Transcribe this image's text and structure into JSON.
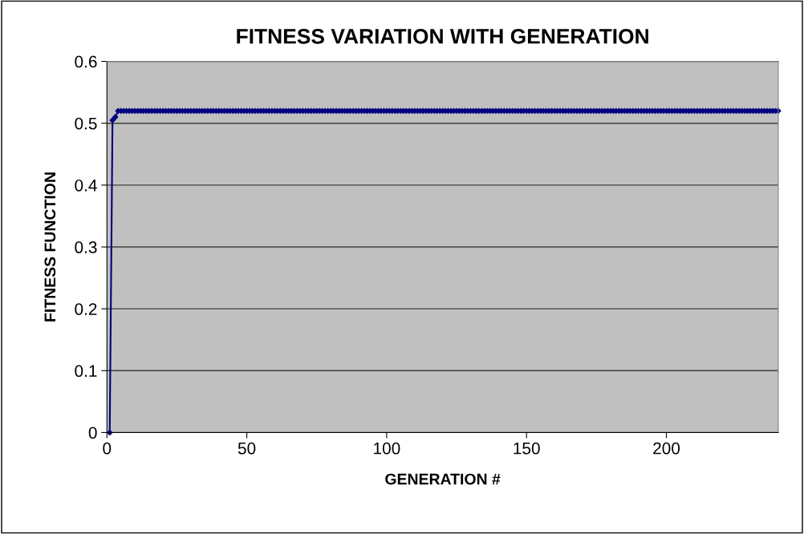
{
  "chart_data": {
    "type": "line",
    "title": "FITNESS VARIATION WITH GENERATION",
    "xlabel": "GENERATION #",
    "ylabel": "FITNESS FUNCTION",
    "x": [
      1,
      2,
      3,
      4,
      5,
      6,
      7,
      8,
      9,
      10,
      11,
      12,
      13,
      14,
      15,
      16,
      17,
      18,
      19,
      20,
      21,
      22,
      23,
      24,
      25,
      26,
      27,
      28,
      29,
      30,
      31,
      32,
      33,
      34,
      35,
      36,
      37,
      38,
      39,
      40,
      41,
      42,
      43,
      44,
      45,
      46,
      47,
      48,
      49,
      50,
      51,
      52,
      53,
      54,
      55,
      56,
      57,
      58,
      59,
      60,
      61,
      62,
      63,
      64,
      65,
      66,
      67,
      68,
      69,
      70,
      71,
      72,
      73,
      74,
      75,
      76,
      77,
      78,
      79,
      80,
      81,
      82,
      83,
      84,
      85,
      86,
      87,
      88,
      89,
      90,
      91,
      92,
      93,
      94,
      95,
      96,
      97,
      98,
      99,
      100,
      101,
      102,
      103,
      104,
      105,
      106,
      107,
      108,
      109,
      110,
      111,
      112,
      113,
      114,
      115,
      116,
      117,
      118,
      119,
      120,
      121,
      122,
      123,
      124,
      125,
      126,
      127,
      128,
      129,
      130,
      131,
      132,
      133,
      134,
      135,
      136,
      137,
      138,
      139,
      140,
      141,
      142,
      143,
      144,
      145,
      146,
      147,
      148,
      149,
      150,
      151,
      152,
      153,
      154,
      155,
      156,
      157,
      158,
      159,
      160,
      161,
      162,
      163,
      164,
      165,
      166,
      167,
      168,
      169,
      170,
      171,
      172,
      173,
      174,
      175,
      176,
      177,
      178,
      179,
      180,
      181,
      182,
      183,
      184,
      185,
      186,
      187,
      188,
      189,
      190,
      191,
      192,
      193,
      194,
      195,
      196,
      197,
      198,
      199,
      200,
      201,
      202,
      203,
      204,
      205,
      206,
      207,
      208,
      209,
      210,
      211,
      212,
      213,
      214,
      215,
      216,
      217,
      218,
      219,
      220,
      221,
      222,
      223,
      224,
      225,
      226,
      227,
      228,
      229,
      230,
      231,
      232,
      233,
      234,
      235,
      236,
      237,
      238,
      239,
      240
    ],
    "series": [
      {
        "color": "#000080",
        "values": [
          0,
          0.505,
          0.51,
          0.52,
          0.52,
          0.52,
          0.52,
          0.52,
          0.52,
          0.52,
          0.52,
          0.52,
          0.52,
          0.52,
          0.52,
          0.52,
          0.52,
          0.52,
          0.52,
          0.52,
          0.52,
          0.52,
          0.52,
          0.52,
          0.52,
          0.52,
          0.52,
          0.52,
          0.52,
          0.52,
          0.52,
          0.52,
          0.52,
          0.52,
          0.52,
          0.52,
          0.52,
          0.52,
          0.52,
          0.52,
          0.52,
          0.52,
          0.52,
          0.52,
          0.52,
          0.52,
          0.52,
          0.52,
          0.52,
          0.52,
          0.52,
          0.52,
          0.52,
          0.52,
          0.52,
          0.52,
          0.52,
          0.52,
          0.52,
          0.52,
          0.52,
          0.52,
          0.52,
          0.52,
          0.52,
          0.52,
          0.52,
          0.52,
          0.52,
          0.52,
          0.52,
          0.52,
          0.52,
          0.52,
          0.52,
          0.52,
          0.52,
          0.52,
          0.52,
          0.52,
          0.52,
          0.52,
          0.52,
          0.52,
          0.52,
          0.52,
          0.52,
          0.52,
          0.52,
          0.52,
          0.52,
          0.52,
          0.52,
          0.52,
          0.52,
          0.52,
          0.52,
          0.52,
          0.52,
          0.52,
          0.52,
          0.52,
          0.52,
          0.52,
          0.52,
          0.52,
          0.52,
          0.52,
          0.52,
          0.52,
          0.52,
          0.52,
          0.52,
          0.52,
          0.52,
          0.52,
          0.52,
          0.52,
          0.52,
          0.52,
          0.52,
          0.52,
          0.52,
          0.52,
          0.52,
          0.52,
          0.52,
          0.52,
          0.52,
          0.52,
          0.52,
          0.52,
          0.52,
          0.52,
          0.52,
          0.52,
          0.52,
          0.52,
          0.52,
          0.52,
          0.52,
          0.52,
          0.52,
          0.52,
          0.52,
          0.52,
          0.52,
          0.52,
          0.52,
          0.52,
          0.52,
          0.52,
          0.52,
          0.52,
          0.52,
          0.52,
          0.52,
          0.52,
          0.52,
          0.52,
          0.52,
          0.52,
          0.52,
          0.52,
          0.52,
          0.52,
          0.52,
          0.52,
          0.52,
          0.52,
          0.52,
          0.52,
          0.52,
          0.52,
          0.52,
          0.52,
          0.52,
          0.52,
          0.52,
          0.52,
          0.52,
          0.52,
          0.52,
          0.52,
          0.52,
          0.52,
          0.52,
          0.52,
          0.52,
          0.52,
          0.52,
          0.52,
          0.52,
          0.52,
          0.52,
          0.52,
          0.52,
          0.52,
          0.52,
          0.52,
          0.52,
          0.52,
          0.52,
          0.52,
          0.52,
          0.52,
          0.52,
          0.52,
          0.52,
          0.52,
          0.52,
          0.52,
          0.52,
          0.52,
          0.52,
          0.52,
          0.52,
          0.52,
          0.52,
          0.52,
          0.52,
          0.52,
          0.52,
          0.52,
          0.52,
          0.52,
          0.52,
          0.52,
          0.52,
          0.52,
          0.52,
          0.52,
          0.52,
          0.52,
          0.52,
          0.52,
          0.52,
          0.52,
          0.52,
          0.52
        ]
      }
    ],
    "xlim": [
      0,
      240
    ],
    "xticks": [
      0,
      50,
      100,
      150,
      200
    ],
    "ylim": [
      0,
      0.6
    ],
    "yticks": [
      0,
      0.1,
      0.2,
      0.3,
      0.4,
      0.5,
      0.6
    ],
    "grid": "y",
    "marker": "diamond",
    "line_style": "solid"
  }
}
